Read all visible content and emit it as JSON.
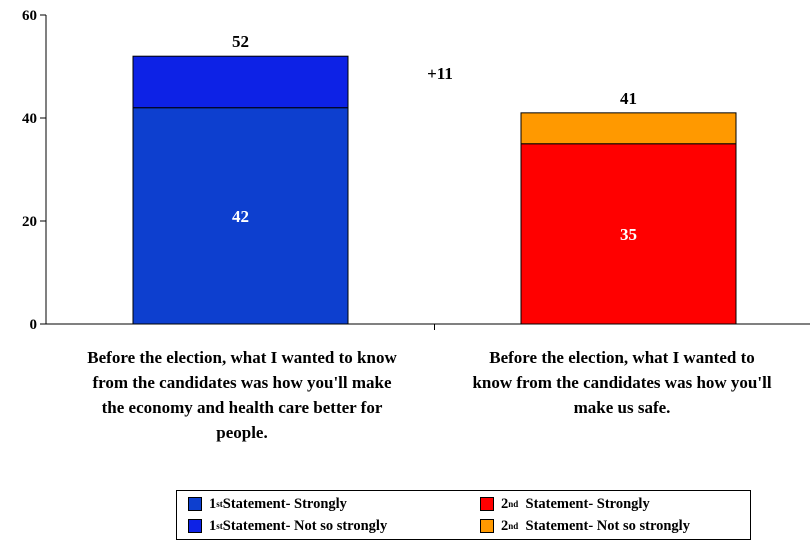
{
  "chart_data": {
    "type": "bar",
    "stacked": true,
    "categories": [
      "Before the election, what I wanted to know from the candidates was how you'll make the economy and health care better for people.",
      "Before the election, what I wanted to know from the candidates was how you'll make us safe."
    ],
    "category_lines": [
      [
        "Before the election, what I wanted to know",
        "from the candidates was how you'll make",
        "the economy and health care better for",
        "people."
      ],
      [
        "Before the election, what I wanted to",
        "know from the candidates was how you'll",
        "make us safe."
      ]
    ],
    "segments": [
      {
        "values": [
          42,
          35
        ],
        "colors": [
          "#0d3fcf",
          "#ff0000"
        ],
        "show_labels": true
      },
      {
        "values": [
          10,
          6
        ],
        "colors": [
          "#0d22e6",
          "#ff9900"
        ],
        "show_labels": false
      }
    ],
    "totals": [
      52,
      41
    ],
    "annotation": "+11",
    "ylim": [
      0,
      60
    ],
    "yticks": [
      0,
      20,
      40,
      60
    ],
    "grid": false,
    "legend_position": "bottom",
    "legend": [
      {
        "ordinal": "1",
        "suffix": "st",
        "text": " Statement- Strongly",
        "color": "#0d3fcf"
      },
      {
        "ordinal": "1",
        "suffix": "st",
        "text": " Statement- Not so strongly",
        "color": "#0d22e6"
      },
      {
        "ordinal": "2",
        "suffix": "nd",
        "text": "  Statement- Strongly",
        "color": "#ff0000"
      },
      {
        "ordinal": "2",
        "suffix": "nd",
        "text": "  Statement- Not so strongly",
        "color": "#ff9900"
      }
    ]
  }
}
